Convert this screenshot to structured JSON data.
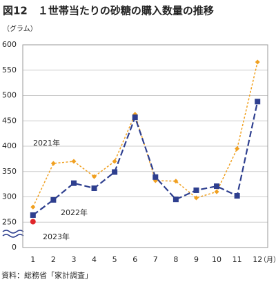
{
  "chart_data": {
    "type": "line",
    "title": "図12　１世帯当たりの砂糖の購入数量の推移",
    "y_label": "（グラム）",
    "x_label": "（月）",
    "source": "資料：総務省「家計調査」",
    "axis_break_label": "0",
    "categories": [
      "1",
      "2",
      "3",
      "4",
      "5",
      "6",
      "7",
      "8",
      "9",
      "10",
      "11",
      "12"
    ],
    "series": [
      {
        "name": "2021年",
        "color": "#f0a020",
        "values": [
          280,
          366,
          370,
          340,
          370,
          463,
          332,
          331,
          298,
          310,
          395,
          566
        ]
      },
      {
        "name": "2022年",
        "color": "#2e3f8f",
        "values": [
          264,
          294,
          327,
          317,
          349,
          457,
          339,
          295,
          313,
          321,
          302,
          488
        ]
      },
      {
        "name": "2023年",
        "color": "#e0262a",
        "values": [
          251,
          null,
          null,
          null,
          null,
          null,
          null,
          null,
          null,
          null,
          null,
          null
        ]
      }
    ],
    "ylim": [
      200,
      600
    ],
    "yticks": [
      250,
      300,
      350,
      400,
      450,
      500,
      550,
      600
    ],
    "grid": true
  }
}
